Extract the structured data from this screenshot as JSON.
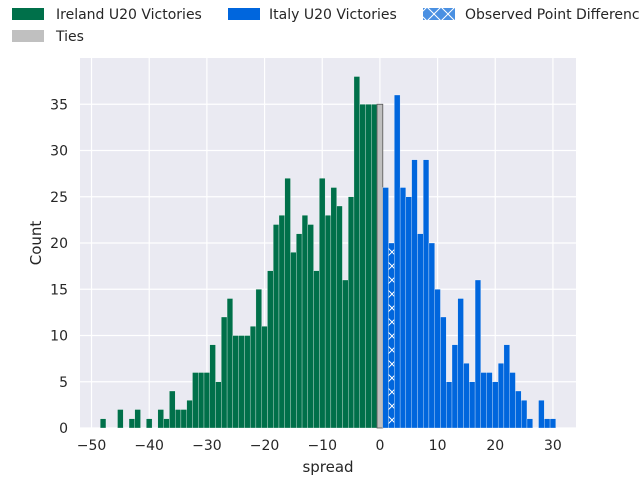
{
  "chart_data": {
    "type": "bar",
    "xlabel": "spread",
    "ylabel": "Count",
    "xlim": [
      -52,
      34
    ],
    "ylim": [
      0,
      40
    ],
    "xticks": [
      -50,
      -40,
      -30,
      -20,
      -10,
      0,
      10,
      20,
      30
    ],
    "yticks": [
      0,
      5,
      10,
      15,
      20,
      25,
      30,
      35
    ],
    "grid": true,
    "legend_position": "top",
    "colors": {
      "ireland": "#00704a",
      "italy": "#0066dd",
      "ties": "#c0c0c0",
      "observed": "#4a90e2",
      "background": "#eaeaf2",
      "grid": "#ffffff"
    },
    "series": [
      {
        "name": "Ireland U20 Victories",
        "x": [
          -48,
          -45,
          -43,
          -42,
          -40,
          -38,
          -37,
          -36,
          -35,
          -34,
          -33,
          -32,
          -31,
          -30,
          -29,
          -28,
          -27,
          -26,
          -25,
          -24,
          -23,
          -22,
          -21,
          -20,
          -19,
          -18,
          -17,
          -16,
          -15,
          -14,
          -13,
          -12,
          -11,
          -10,
          -9,
          -8,
          -7,
          -6,
          -5,
          -4,
          -3,
          -2,
          -1
        ],
        "values": [
          1,
          2,
          1,
          2,
          1,
          2,
          1,
          4,
          2,
          2,
          3,
          6,
          6,
          6,
          9,
          5,
          12,
          14,
          10,
          10,
          10,
          11,
          15,
          11,
          17,
          22,
          23,
          27,
          19,
          21,
          23,
          22,
          17,
          27,
          23,
          26,
          24,
          16,
          25,
          38,
          35,
          35,
          35
        ]
      },
      {
        "name": "Ties",
        "x": [
          0
        ],
        "values": [
          35
        ]
      },
      {
        "name": "Italy U20 Victories",
        "x": [
          1,
          2,
          3,
          4,
          5,
          6,
          7,
          8,
          9,
          10,
          11,
          12,
          13,
          14,
          15,
          16,
          17,
          18,
          19,
          20,
          21,
          22,
          23,
          24,
          25,
          26,
          27,
          28,
          29,
          30
        ],
        "values": [
          26,
          20,
          36,
          26,
          25,
          29,
          21,
          29,
          20,
          15,
          12,
          5,
          9,
          14,
          7,
          5,
          16,
          6,
          6,
          5,
          7,
          9,
          6,
          4,
          3,
          1,
          0,
          3,
          1,
          1
        ]
      }
    ],
    "observed_point_difference": {
      "name": "Observed Point Difference",
      "x": [
        2
      ]
    },
    "legend": [
      "Ireland U20 Victories",
      "Italy U20 Victories",
      "Observed Point Difference",
      "Ties"
    ]
  }
}
